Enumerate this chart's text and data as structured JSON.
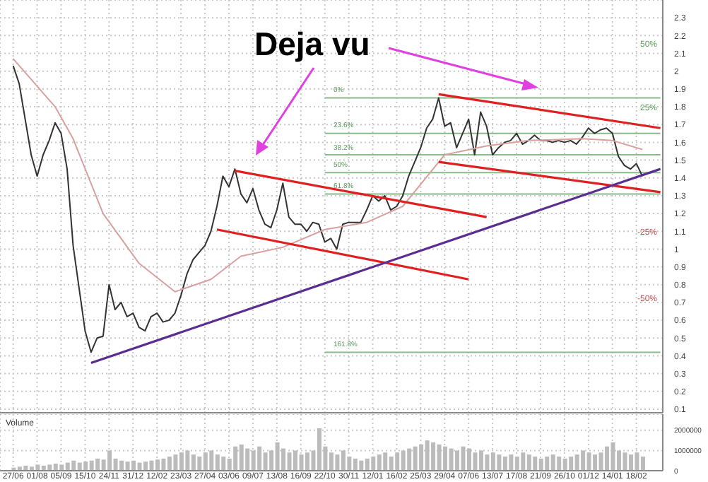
{
  "chart_data": [
    {
      "type": "line",
      "categories": [
        null,
        null,
        null,
        null,
        null,
        null,
        null,
        null,
        null,
        null,
        null,
        null,
        null,
        null,
        null,
        null,
        null,
        null,
        null,
        null,
        null,
        null,
        null,
        null,
        null,
        null,
        null,
        null,
        null,
        null,
        null,
        null,
        null,
        null,
        null,
        null,
        null,
        null,
        null,
        null,
        null,
        null,
        null,
        null,
        null,
        null,
        null,
        null,
        null,
        null,
        null,
        null,
        null,
        null,
        null,
        null,
        null,
        null,
        null,
        null,
        null,
        null,
        null,
        null,
        null,
        null,
        null,
        null,
        null,
        null,
        null,
        null,
        null,
        null,
        null,
        null,
        null,
        null,
        null,
        null,
        null,
        null,
        null,
        null,
        null,
        null,
        null,
        null,
        null,
        null,
        null,
        null,
        null,
        null,
        null,
        null,
        null,
        null,
        null,
        null,
        null,
        null,
        null,
        null,
        null,
        null,
        null,
        null,
        null
      ],
      "series": [
        {
          "color": "#333333",
          "values": [
            2.03,
            1.93,
            1.73,
            1.53,
            1.41,
            1.53,
            1.61,
            1.71,
            1.65,
            1.45,
            1.02,
            0.78,
            0.54,
            0.42,
            0.5,
            0.51,
            0.8,
            0.66,
            0.7,
            0.62,
            0.64,
            0.56,
            0.54,
            0.62,
            0.64,
            0.59,
            0.6,
            0.64,
            0.74,
            0.86,
            0.94,
            0.98,
            1.02,
            1.1,
            1.24,
            1.41,
            1.35,
            1.45,
            1.31,
            1.26,
            1.34,
            1.22,
            1.14,
            1.12,
            1.22,
            1.37,
            1.18,
            1.14,
            1.14,
            1.1,
            1.15,
            1.14,
            1.04,
            1.06,
            1.0,
            1.14,
            1.15,
            1.15,
            1.15,
            1.22,
            1.3,
            1.27,
            1.3,
            1.22,
            1.24,
            1.3,
            1.41,
            1.49,
            1.57,
            1.68,
            1.73,
            1.85,
            1.69,
            1.71,
            1.57,
            1.65,
            1.73,
            1.53,
            1.77,
            1.69,
            1.53,
            1.57,
            1.6,
            1.61,
            1.65,
            1.59,
            1.61,
            1.64,
            1.61,
            1.61,
            1.6,
            1.61,
            1.6,
            1.61,
            1.59,
            1.63,
            1.68,
            1.65,
            1.67,
            1.68,
            1.65,
            1.52,
            1.47,
            1.45,
            1.48,
            1.41,
            null,
            null,
            null
          ]
        },
        {
          "color": "#d9a0a0",
          "values": [
            2.07,
            null,
            null,
            null,
            null,
            null,
            null,
            1.8,
            null,
            null,
            1.62,
            null,
            null,
            null,
            null,
            1.2,
            null,
            null,
            null,
            null,
            null,
            0.92,
            null,
            null,
            null,
            null,
            null,
            0.76,
            null,
            null,
            null,
            null,
            null,
            0.83,
            null,
            null,
            null,
            null,
            0.96,
            null,
            null,
            null,
            null,
            null,
            null,
            1.01,
            null,
            null,
            null,
            null,
            null,
            null,
            1.11,
            null,
            null,
            null,
            null,
            null,
            null,
            1.15,
            null,
            null,
            null,
            null,
            null,
            1.24,
            null,
            null,
            null,
            null,
            null,
            null,
            1.53,
            null,
            null,
            null,
            null,
            null,
            null,
            1.58,
            null,
            null,
            null,
            null,
            null,
            null,
            1.61,
            null,
            null,
            null,
            null,
            null,
            null,
            null,
            null,
            1.62,
            null,
            null,
            null,
            null,
            1.61,
            null,
            null,
            null,
            null,
            1.56,
            null,
            null,
            null
          ]
        },
        {
          "color": "#e02020",
          "values": [
            null,
            null,
            null,
            null,
            null,
            null,
            null,
            null,
            null,
            null,
            null,
            null,
            null,
            null,
            null,
            null,
            null,
            null,
            null,
            null,
            null,
            null,
            null,
            null,
            null,
            null,
            null,
            null,
            null,
            null,
            null,
            null,
            null,
            null,
            null,
            null,
            null,
            1.44,
            null,
            null,
            null,
            null,
            null,
            null,
            null,
            null,
            null,
            null,
            null,
            null,
            null,
            null,
            null,
            null,
            null,
            null,
            null,
            null,
            null,
            null,
            null,
            null,
            null,
            null,
            null,
            null,
            null,
            null,
            null,
            null,
            null,
            null,
            null,
            null,
            null,
            null,
            null,
            null,
            null,
            1.18,
            null,
            null,
            null,
            null,
            null,
            null,
            null,
            null,
            null,
            null,
            null,
            null,
            null,
            null,
            null,
            null,
            null,
            null,
            null,
            null,
            null,
            null,
            null,
            null,
            null,
            null,
            null,
            null,
            null
          ]
        },
        {
          "color": "#e02020",
          "values": [
            null,
            null,
            null,
            null,
            null,
            null,
            null,
            null,
            null,
            null,
            null,
            null,
            null,
            null,
            null,
            null,
            null,
            null,
            null,
            null,
            null,
            null,
            null,
            null,
            null,
            null,
            null,
            null,
            null,
            null,
            null,
            null,
            null,
            null,
            1.11,
            null,
            null,
            null,
            null,
            null,
            null,
            null,
            null,
            null,
            null,
            null,
            null,
            null,
            null,
            null,
            null,
            null,
            null,
            null,
            null,
            null,
            null,
            null,
            null,
            null,
            null,
            null,
            null,
            null,
            null,
            null,
            null,
            null,
            null,
            null,
            null,
            null,
            null,
            null,
            null,
            null,
            0.83,
            null,
            null,
            null,
            null,
            null,
            null,
            null,
            null,
            null,
            null,
            null,
            null,
            null,
            null,
            null,
            null,
            null,
            null,
            null,
            null,
            null,
            null,
            null,
            null,
            null,
            null,
            null,
            null,
            null,
            null,
            null,
            null
          ]
        },
        {
          "color": "#e02020",
          "values": [
            null,
            null,
            null,
            null,
            null,
            null,
            null,
            null,
            null,
            null,
            null,
            null,
            null,
            null,
            null,
            null,
            null,
            null,
            null,
            null,
            null,
            null,
            null,
            null,
            null,
            null,
            null,
            null,
            null,
            null,
            null,
            null,
            null,
            null,
            null,
            null,
            null,
            null,
            null,
            null,
            null,
            null,
            null,
            null,
            null,
            null,
            null,
            null,
            null,
            null,
            null,
            null,
            null,
            null,
            null,
            null,
            null,
            null,
            null,
            null,
            null,
            null,
            null,
            null,
            null,
            null,
            null,
            null,
            null,
            null,
            null,
            1.87,
            null,
            null,
            null,
            null,
            null,
            null,
            null,
            null,
            null,
            null,
            null,
            null,
            null,
            null,
            null,
            null,
            null,
            null,
            null,
            null,
            null,
            null,
            null,
            null,
            null,
            null,
            null,
            null,
            null,
            null,
            null,
            null,
            null,
            null,
            null,
            null,
            1.68
          ]
        },
        {
          "color": "#e02020",
          "values": [
            null,
            null,
            null,
            null,
            null,
            null,
            null,
            null,
            null,
            null,
            null,
            null,
            null,
            null,
            null,
            null,
            null,
            null,
            null,
            null,
            null,
            null,
            null,
            null,
            null,
            null,
            null,
            null,
            null,
            null,
            null,
            null,
            null,
            null,
            null,
            null,
            null,
            null,
            null,
            null,
            null,
            null,
            null,
            null,
            null,
            null,
            null,
            null,
            null,
            null,
            null,
            null,
            null,
            null,
            null,
            null,
            null,
            null,
            null,
            null,
            null,
            null,
            null,
            null,
            null,
            null,
            null,
            null,
            null,
            null,
            null,
            1.49,
            null,
            null,
            null,
            null,
            null,
            null,
            null,
            null,
            null,
            null,
            null,
            null,
            null,
            null,
            null,
            null,
            null,
            null,
            null,
            null,
            null,
            null,
            null,
            null,
            null,
            null,
            null,
            null,
            null,
            null,
            null,
            null,
            null,
            null,
            null,
            null,
            1.32
          ]
        },
        {
          "color": "#5a2d91",
          "values": [
            null,
            null,
            null,
            null,
            null,
            null,
            null,
            null,
            null,
            null,
            null,
            null,
            null,
            0.36,
            null,
            null,
            null,
            null,
            null,
            null,
            null,
            null,
            null,
            null,
            null,
            null,
            null,
            null,
            null,
            null,
            null,
            null,
            null,
            null,
            null,
            null,
            null,
            null,
            null,
            null,
            null,
            null,
            null,
            null,
            null,
            null,
            null,
            null,
            null,
            null,
            null,
            null,
            null,
            null,
            null,
            null,
            null,
            null,
            null,
            null,
            null,
            null,
            null,
            null,
            null,
            null,
            null,
            null,
            null,
            null,
            null,
            null,
            null,
            null,
            null,
            null,
            null,
            null,
            null,
            null,
            null,
            null,
            null,
            null,
            null,
            null,
            null,
            null,
            null,
            null,
            null,
            null,
            null,
            null,
            null,
            null,
            null,
            null,
            null,
            null,
            null,
            null,
            null,
            null,
            null,
            null,
            null,
            null,
            1.45
          ]
        }
      ],
      "ylim": [
        0.08,
        2.4
      ],
      "yticks": [
        0.1,
        0.2,
        0.3,
        0.4,
        0.5,
        0.6,
        0.7,
        0.8,
        0.9,
        1.0,
        1.1,
        1.2,
        1.3,
        1.4,
        1.5,
        1.6,
        1.7,
        1.8,
        1.9,
        2.0,
        2.1,
        2.2,
        2.3
      ],
      "ref_lines": [
        {
          "axis": "y",
          "value": 1.85,
          "color": "#88bb88"
        },
        {
          "axis": "y",
          "value": 1.65,
          "color": "#88bb88"
        },
        {
          "axis": "y",
          "value": 1.53,
          "color": "#88bb88"
        },
        {
          "axis": "y",
          "value": 1.43,
          "color": "#88bb88"
        },
        {
          "axis": "y",
          "value": 1.31,
          "color": "#88bb88"
        },
        {
          "axis": "y",
          "value": 0.42,
          "color": "#88bb88"
        }
      ],
      "annotations": [
        "Deja vu",
        "50%",
        "25%",
        "-25%",
        "-50%",
        "0%",
        "23.6%",
        "38.2%",
        "50%",
        "61.8%",
        "161.8%"
      ],
      "grid": true,
      "legend": false,
      "marker": "none"
    },
    {
      "type": "bar",
      "title": "Volume",
      "categories": [
        "27/06",
        null,
        null,
        null,
        "01/08",
        null,
        null,
        null,
        "05/09",
        null,
        null,
        null,
        "15/10",
        null,
        null,
        null,
        "24/11",
        null,
        null,
        null,
        "31/12",
        null,
        null,
        null,
        "12/02",
        null,
        null,
        null,
        "23/03",
        null,
        null,
        null,
        "27/04",
        null,
        null,
        null,
        "03/06",
        null,
        null,
        null,
        "09/07",
        null,
        null,
        null,
        "13/08",
        null,
        null,
        null,
        "16/09",
        null,
        null,
        null,
        "22/10",
        null,
        null,
        null,
        "30/11",
        null,
        null,
        null,
        "12/01",
        null,
        null,
        null,
        "16/02",
        null,
        null,
        null,
        "25/03",
        null,
        null,
        null,
        "29/04",
        null,
        null,
        null,
        "07/06",
        null,
        null,
        null,
        "13/07",
        null,
        null,
        null,
        "17/08",
        null,
        null,
        null,
        "21/09",
        null,
        null,
        null,
        "26/10",
        null,
        null,
        null,
        "01/12",
        null,
        null,
        null,
        "14/01",
        null,
        null,
        null,
        "18/02",
        null,
        null,
        null,
        null
      ],
      "color": "#bbbbbb",
      "values": [
        150000,
        200000,
        250000,
        200000,
        300000,
        250000,
        300000,
        350000,
        300000,
        400000,
        500000,
        400000,
        450000,
        500000,
        600000,
        550000,
        1000000,
        600000,
        500000,
        450000,
        500000,
        400000,
        450000,
        500000,
        550000,
        600000,
        700000,
        800000,
        900000,
        1000000,
        800000,
        700000,
        900000,
        1000000,
        800000,
        700000,
        600000,
        1200000,
        1300000,
        1100000,
        1000000,
        1200000,
        900000,
        1000000,
        1400000,
        1100000,
        900000,
        1000000,
        800000,
        900000,
        1000000,
        2100000,
        1200000,
        900000,
        800000,
        1000000,
        700000,
        600000,
        500000,
        600000,
        700000,
        800000,
        900000,
        700000,
        900000,
        1000000,
        1100000,
        1200000,
        1300000,
        1500000,
        1400000,
        1300000,
        1200000,
        1100000,
        1000000,
        1200000,
        1100000,
        900000,
        1000000,
        800000,
        900000,
        800000,
        700000,
        800000,
        700000,
        900000,
        800000,
        700000,
        600000,
        700000,
        800000,
        700000,
        600000,
        700000,
        800000,
        1000000,
        900000,
        800000,
        900000,
        1200000,
        1400000,
        1000000,
        900000,
        800000,
        900000,
        700000,
        null,
        null,
        null
      ],
      "ylim": [
        0,
        2800000
      ],
      "yticks": [
        0,
        1000000,
        2000000
      ],
      "grid": true
    }
  ]
}
